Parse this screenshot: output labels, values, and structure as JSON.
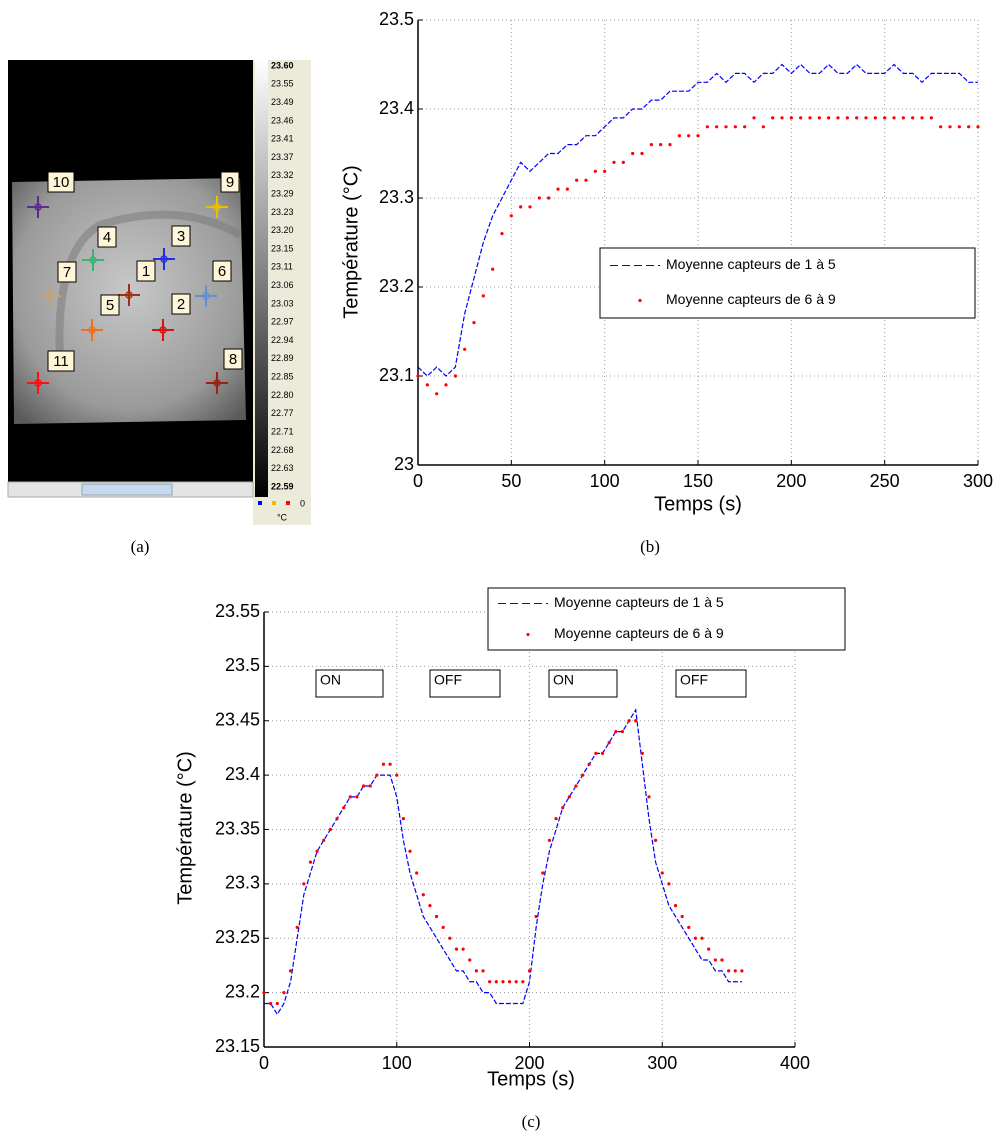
{
  "figure": {
    "captions": [
      "(a)",
      "(b)",
      "(c)"
    ],
    "thermal_image": {
      "colorbar_labels": [
        "23.60",
        "23.55",
        "23.49",
        "23.46",
        "23.41",
        "23.37",
        "23.32",
        "23.29",
        "23.23",
        "23.20",
        "23.15",
        "23.11",
        "23.06",
        "23.03",
        "22.97",
        "22.94",
        "22.89",
        "22.85",
        "22.80",
        "22.77",
        "22.71",
        "22.68",
        "22.63",
        "22.59"
      ],
      "colorbar_unit": "°C",
      "colorbar_zero": "0",
      "sensors": [
        {
          "label": "10",
          "color": "#5b2c8e"
        },
        {
          "label": "9",
          "color": "#e8c000"
        },
        {
          "label": "4",
          "color": "#3cb371"
        },
        {
          "label": "3",
          "color": "#2030e0"
        },
        {
          "label": "7",
          "color": "#c8a07a"
        },
        {
          "label": "1",
          "color": "#a03010"
        },
        {
          "label": "6",
          "color": "#6090d0"
        },
        {
          "label": "5",
          "color": "#f07020"
        },
        {
          "label": "2",
          "color": "#e01010"
        },
        {
          "label": "11",
          "color": "#ff1010"
        },
        {
          "label": "8",
          "color": "#a02010"
        }
      ]
    }
  },
  "chart_data": [
    {
      "type": "line",
      "xlabel": "Temps (s)",
      "ylabel": "Température (°C)",
      "xlim": [
        0,
        300
      ],
      "xticks": [
        0,
        50,
        100,
        150,
        200,
        250,
        300
      ],
      "ylim": [
        23,
        23.5
      ],
      "yticks": [
        23,
        23.1,
        23.2,
        23.3,
        23.4,
        23.5
      ],
      "grid": true,
      "legend": "center right",
      "x": [
        0,
        5,
        10,
        15,
        20,
        25,
        30,
        35,
        40,
        45,
        50,
        55,
        60,
        65,
        70,
        75,
        80,
        85,
        90,
        95,
        100,
        105,
        110,
        115,
        120,
        125,
        130,
        135,
        140,
        145,
        150,
        155,
        160,
        165,
        170,
        175,
        180,
        185,
        190,
        195,
        200,
        205,
        210,
        215,
        220,
        225,
        230,
        235,
        240,
        245,
        250,
        255,
        260,
        265,
        270,
        275,
        280,
        285,
        290,
        295,
        300
      ],
      "series": [
        {
          "name": "Moyenne capteurs de 1 à 5",
          "color": "#0000ff",
          "style": "dashed",
          "values": [
            23.11,
            23.1,
            23.11,
            23.1,
            23.11,
            23.17,
            23.21,
            23.25,
            23.28,
            23.3,
            23.32,
            23.34,
            23.33,
            23.34,
            23.35,
            23.35,
            23.36,
            23.36,
            23.37,
            23.37,
            23.38,
            23.39,
            23.39,
            23.4,
            23.4,
            23.41,
            23.41,
            23.42,
            23.42,
            23.42,
            23.43,
            23.43,
            23.44,
            23.43,
            23.44,
            23.44,
            23.43,
            23.44,
            23.44,
            23.45,
            23.44,
            23.45,
            23.44,
            23.44,
            23.45,
            23.44,
            23.44,
            23.45,
            23.44,
            23.44,
            23.44,
            23.45,
            23.44,
            23.44,
            23.43,
            23.44,
            23.44,
            23.44,
            23.44,
            23.43,
            23.43
          ]
        },
        {
          "name": "Moyenne capteurs de 6 à 9",
          "color": "#ff0000",
          "style": "dots",
          "values": [
            23.1,
            23.09,
            23.08,
            23.09,
            23.1,
            23.13,
            23.16,
            23.19,
            23.22,
            23.26,
            23.28,
            23.29,
            23.29,
            23.3,
            23.3,
            23.31,
            23.31,
            23.32,
            23.32,
            23.33,
            23.33,
            23.34,
            23.34,
            23.35,
            23.35,
            23.36,
            23.36,
            23.36,
            23.37,
            23.37,
            23.37,
            23.38,
            23.38,
            23.38,
            23.38,
            23.38,
            23.39,
            23.38,
            23.39,
            23.39,
            23.39,
            23.39,
            23.39,
            23.39,
            23.39,
            23.39,
            23.39,
            23.39,
            23.39,
            23.39,
            23.39,
            23.39,
            23.39,
            23.39,
            23.39,
            23.39,
            23.38,
            23.38,
            23.38,
            23.38,
            23.38
          ]
        }
      ]
    },
    {
      "type": "line",
      "xlabel": "Temps (s)",
      "ylabel": "Température (°C)",
      "xlim": [
        0,
        400
      ],
      "xticks": [
        0,
        100,
        200,
        300,
        400
      ],
      "ylim": [
        23.15,
        23.55
      ],
      "yticks": [
        23.15,
        23.2,
        23.25,
        23.3,
        23.35,
        23.4,
        23.45,
        23.5,
        23.55
      ],
      "grid": true,
      "legend": "upper right",
      "annotations": [
        "ON",
        "OFF",
        "ON",
        "OFF"
      ],
      "x": [
        0,
        5,
        10,
        15,
        20,
        25,
        30,
        35,
        40,
        45,
        50,
        55,
        60,
        65,
        70,
        75,
        80,
        85,
        90,
        95,
        100,
        105,
        110,
        115,
        120,
        125,
        130,
        135,
        140,
        145,
        150,
        155,
        160,
        165,
        170,
        175,
        180,
        185,
        190,
        195,
        200,
        205,
        210,
        215,
        220,
        225,
        230,
        235,
        240,
        245,
        250,
        255,
        260,
        265,
        270,
        275,
        280,
        285,
        290,
        295,
        300,
        305,
        310,
        315,
        320,
        325,
        330,
        335,
        340,
        345,
        350,
        355,
        360
      ],
      "series": [
        {
          "name": "Moyenne capteurs de 1 à 5",
          "color": "#0000ff",
          "style": "dashed",
          "values": [
            23.19,
            23.19,
            23.18,
            23.19,
            23.21,
            23.25,
            23.29,
            23.31,
            23.33,
            23.34,
            23.35,
            23.36,
            23.37,
            23.38,
            23.38,
            23.39,
            23.39,
            23.4,
            23.4,
            23.4,
            23.38,
            23.34,
            23.31,
            23.29,
            23.27,
            23.26,
            23.25,
            23.24,
            23.23,
            23.22,
            23.22,
            23.21,
            23.21,
            23.2,
            23.2,
            23.19,
            23.19,
            23.19,
            23.19,
            23.19,
            23.21,
            23.26,
            23.3,
            23.33,
            23.35,
            23.37,
            23.38,
            23.39,
            23.4,
            23.41,
            23.42,
            23.42,
            23.43,
            23.44,
            23.44,
            23.45,
            23.46,
            23.41,
            23.36,
            23.32,
            23.3,
            23.28,
            23.27,
            23.26,
            23.25,
            23.24,
            23.23,
            23.23,
            23.22,
            23.22,
            23.21,
            23.21,
            23.21
          ]
        },
        {
          "name": "Moyenne capteurs de 6 à 9",
          "color": "#ff0000",
          "style": "dots",
          "values": [
            23.2,
            23.19,
            23.19,
            23.2,
            23.22,
            23.26,
            23.3,
            23.32,
            23.33,
            23.34,
            23.35,
            23.36,
            23.37,
            23.38,
            23.38,
            23.39,
            23.39,
            23.4,
            23.41,
            23.41,
            23.4,
            23.36,
            23.33,
            23.31,
            23.29,
            23.28,
            23.27,
            23.26,
            23.25,
            23.24,
            23.24,
            23.23,
            23.22,
            23.22,
            23.21,
            23.21,
            23.21,
            23.21,
            23.21,
            23.21,
            23.22,
            23.27,
            23.31,
            23.34,
            23.36,
            23.37,
            23.38,
            23.39,
            23.4,
            23.41,
            23.42,
            23.42,
            23.43,
            23.44,
            23.44,
            23.45,
            23.45,
            23.42,
            23.38,
            23.34,
            23.31,
            23.3,
            23.28,
            23.27,
            23.26,
            23.25,
            23.25,
            23.24,
            23.23,
            23.23,
            23.22,
            23.22,
            23.22
          ]
        }
      ]
    }
  ]
}
